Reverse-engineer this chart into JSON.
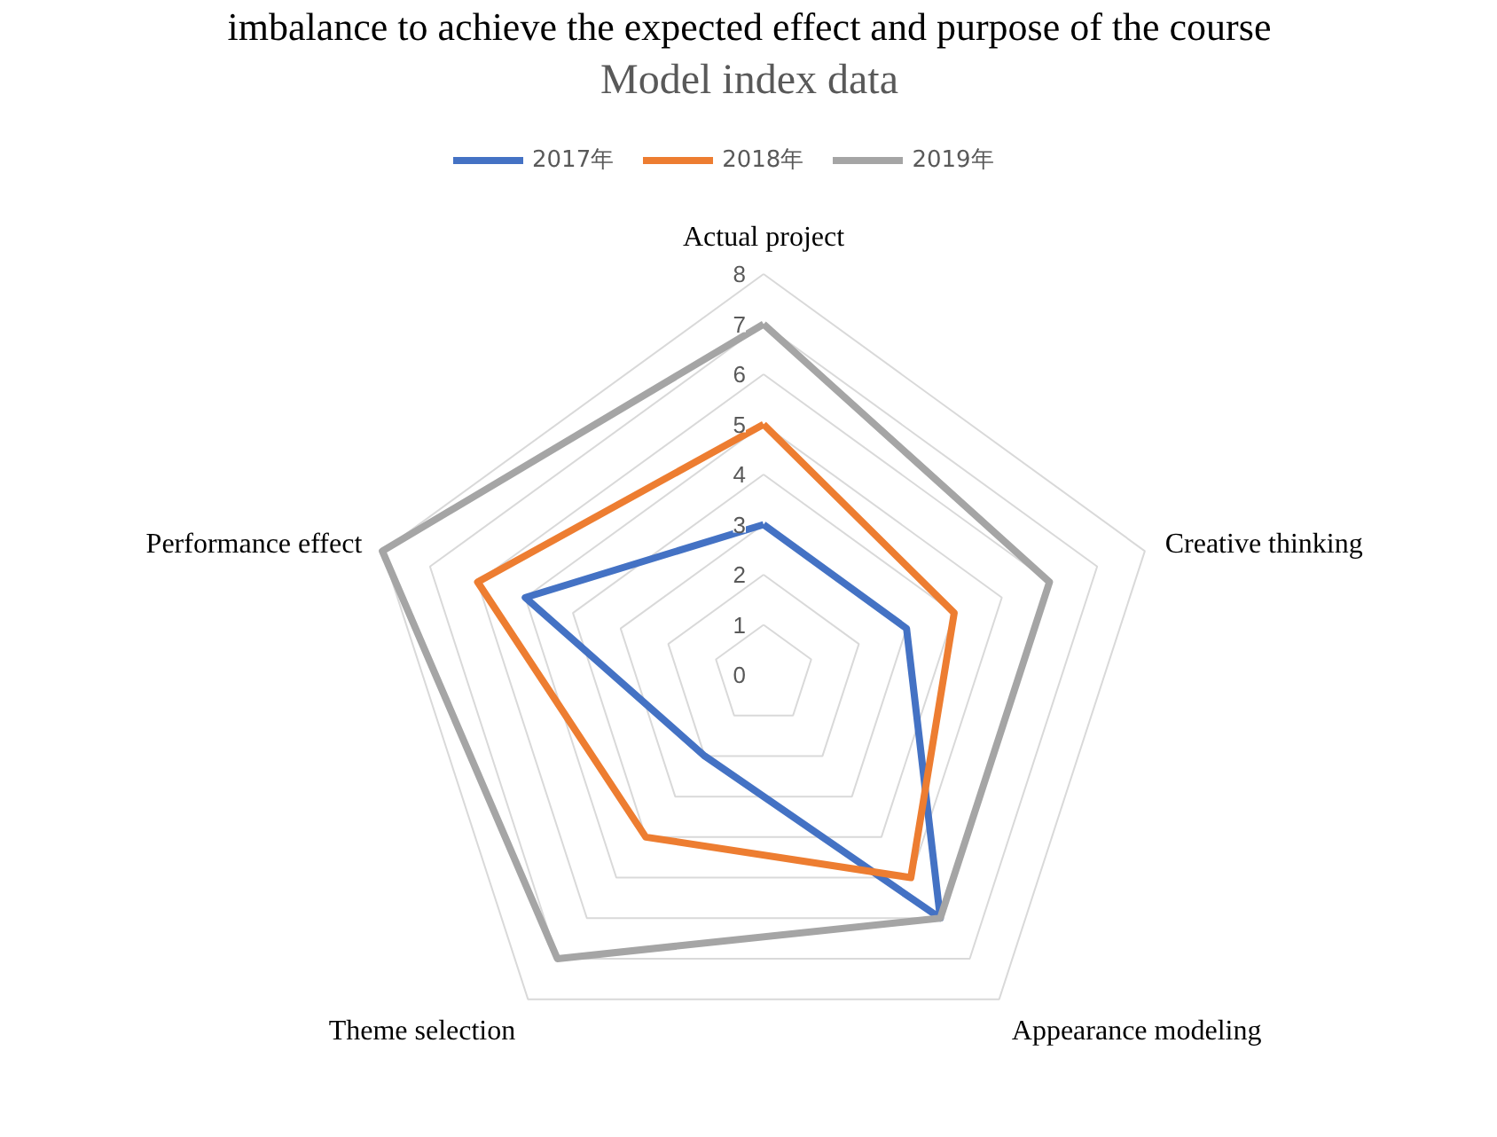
{
  "chart_data": {
    "type": "radar",
    "title": "Model index data",
    "annotations": [
      "imbalance to achieve the expected effect and purpose of the course"
    ],
    "categories": [
      "Actual project",
      "Creative thinking",
      "Appearance modeling",
      "Theme selection",
      "Performance effect"
    ],
    "series": [
      {
        "name": "2017年",
        "color": "#4472c4",
        "values": [
          3,
          3,
          6,
          2,
          5
        ]
      },
      {
        "name": "2018年",
        "color": "#ed7d31",
        "values": [
          5,
          4,
          5,
          4,
          6
        ]
      },
      {
        "name": "2019年",
        "color": "#a5a5a5",
        "values": [
          7,
          6,
          6,
          7,
          8
        ]
      }
    ],
    "ylim": [
      0,
      8
    ],
    "yticks": [
      0,
      1,
      2,
      3,
      4,
      5,
      6,
      7,
      8
    ],
    "grid": true,
    "legend": "top",
    "line_style": "solid",
    "marker": "none"
  }
}
